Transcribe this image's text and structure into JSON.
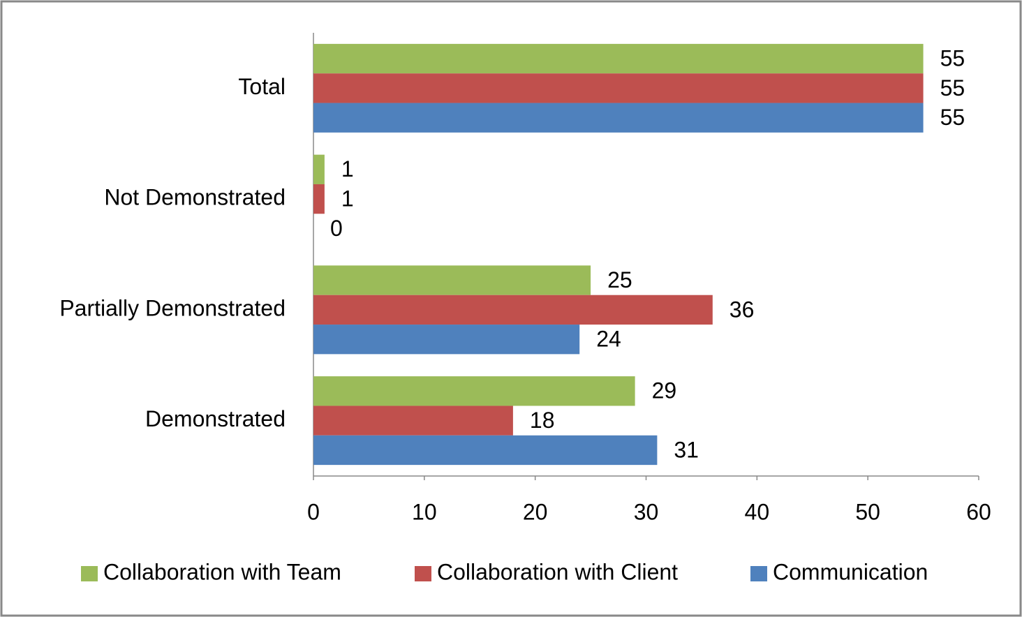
{
  "chart_data": {
    "type": "hbar",
    "categories": [
      "Total",
      "Not Demonstrated",
      "Partially Demonstrated",
      "Demonstrated"
    ],
    "series": [
      {
        "name": "Collaboration with Team",
        "color": "#9bbb59",
        "values": [
          55,
          1,
          25,
          29
        ]
      },
      {
        "name": "Collaboration with Client",
        "color": "#c0504d",
        "values": [
          55,
          1,
          36,
          18
        ]
      },
      {
        "name": "Communication",
        "color": "#4f81bd",
        "values": [
          55,
          0,
          24,
          31
        ]
      }
    ],
    "xlim": [
      0,
      60
    ],
    "xticks": [
      0,
      10,
      20,
      30,
      40,
      50,
      60
    ],
    "legend": "bottom"
  }
}
